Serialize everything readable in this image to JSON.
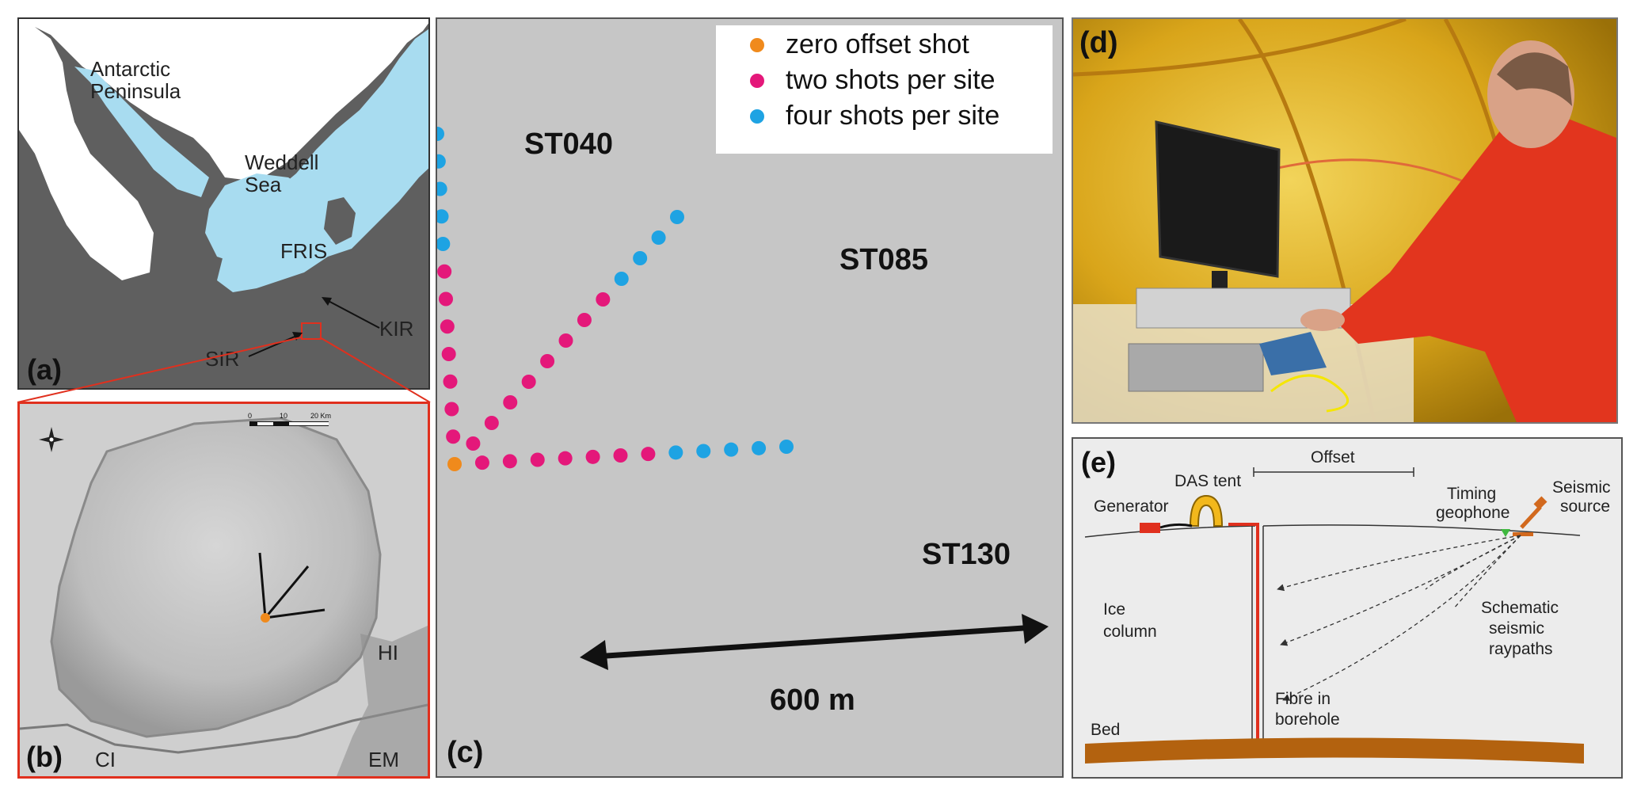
{
  "panel_a": {
    "label": "(a)",
    "antarctic": "Antarctic",
    "peninsula": "Peninsula",
    "weddell": "Weddell",
    "sea": "Sea",
    "fris": "FRIS",
    "kir": "KIR",
    "sir": "SIR"
  },
  "panel_b": {
    "label": "(b)",
    "scale_ticks": [
      "0",
      "10",
      "20 Km"
    ],
    "hi": "HI",
    "ci": "CI",
    "em": "EM"
  },
  "panel_c": {
    "label": "(c)",
    "legend": [
      {
        "text": "zero offset shot",
        "color": "#f08a1c"
      },
      {
        "text": "two shots per site",
        "color": "#e4187a"
      },
      {
        "text": "four shots per site",
        "color": "#1ea3e3"
      }
    ],
    "line_labels": [
      "ST040",
      "ST085",
      "ST130"
    ],
    "distance": "600 m",
    "colors": {
      "zero": "#f08a1c",
      "two": "#e4187a",
      "four": "#1ea3e3"
    }
  },
  "panel_d": {
    "label": "(d)"
  },
  "panel_e": {
    "label": "(e)",
    "offset": "Offset",
    "das_tent": "DAS tent",
    "generator": "Generator",
    "timing": "Timing",
    "geophone": "geophone",
    "seismic": "Seismic",
    "source": "source",
    "ice": "Ice",
    "column": "column",
    "schematic": "Schematic",
    "seismic2": "seismic",
    "raypaths": "raypaths",
    "fibre": "Fibre in",
    "borehole": "borehole",
    "bed": "Bed"
  }
}
